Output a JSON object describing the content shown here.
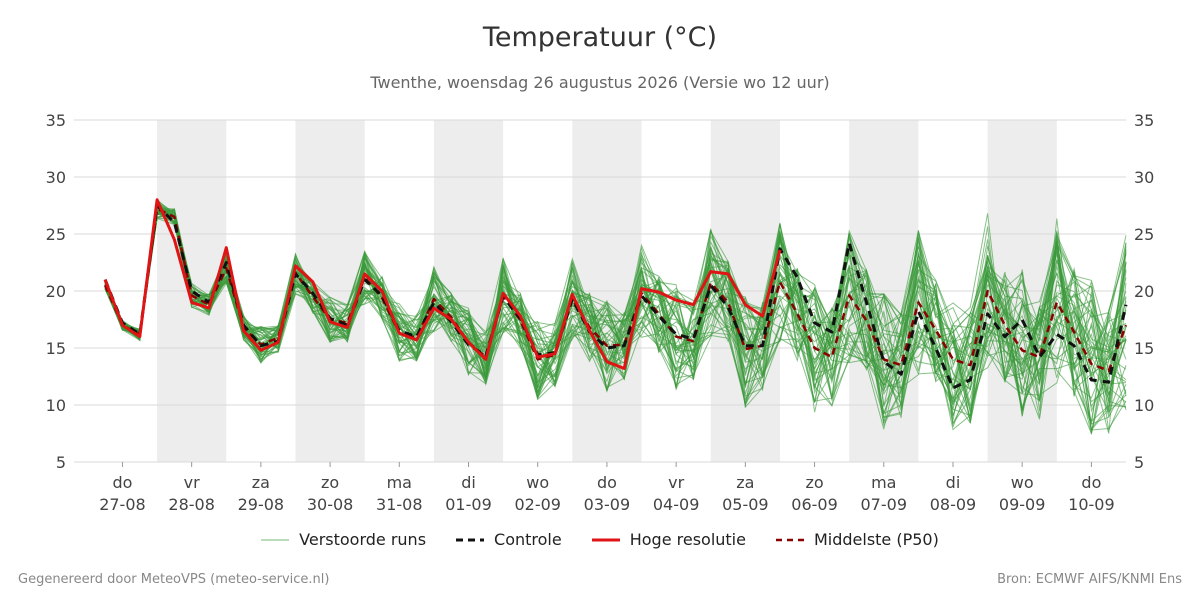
{
  "title": "Temperatuur (°C)",
  "subtitle": "Twenthe, woensdag 26 augustus 2026 (Versie wo 12 uur)",
  "footer_left": "Gegenereerd door MeteoVPS (meteo-service.nl)",
  "footer_right": "Bron: ECMWF AIFS/KNMI Ens",
  "legend": {
    "perturbed": "Verstoorde runs",
    "control": "Controle",
    "hires": "Hoge resolutie",
    "median": "Middelste (P50)"
  },
  "colors": {
    "perturbed": "#3a9a3a",
    "control": "#111111",
    "hires": "#e01414",
    "median": "#8b0000",
    "band": "#ededed",
    "grid": "#d9d9d9"
  },
  "chart_data": {
    "type": "line",
    "title": "Temperatuur (°C)",
    "ylim": [
      5,
      35
    ],
    "yticks": [
      5,
      10,
      15,
      20,
      25,
      30,
      35
    ],
    "grid": true,
    "legend_position": "bottom",
    "day_labels": [
      {
        "dow": "do",
        "date": "27-08"
      },
      {
        "dow": "vr",
        "date": "28-08"
      },
      {
        "dow": "za",
        "date": "29-08"
      },
      {
        "dow": "zo",
        "date": "30-08"
      },
      {
        "dow": "ma",
        "date": "31-08"
      },
      {
        "dow": "di",
        "date": "01-09"
      },
      {
        "dow": "wo",
        "date": "02-09"
      },
      {
        "dow": "do",
        "date": "03-09"
      },
      {
        "dow": "vr",
        "date": "04-09"
      },
      {
        "dow": "za",
        "date": "05-09"
      },
      {
        "dow": "zo",
        "date": "06-09"
      },
      {
        "dow": "ma",
        "date": "07-09"
      },
      {
        "dow": "di",
        "date": "08-09"
      },
      {
        "dow": "wo",
        "date": "09-09"
      },
      {
        "dow": "do",
        "date": "10-09"
      }
    ],
    "x_start_day": -0.7,
    "x_end_day": 14.5,
    "series": [
      {
        "name": "Hoge resolutie",
        "x": [
          -0.25,
          0,
          0.25,
          0.5,
          0.75,
          1,
          1.25,
          1.5,
          1.75,
          2,
          2.25,
          2.5,
          2.75,
          3,
          3.25,
          3.5,
          3.75,
          4,
          4.25,
          4.5,
          4.75,
          5,
          5.25,
          5.5,
          5.75,
          6,
          6.25,
          6.5,
          6.75,
          7,
          7.25,
          7.5,
          7.75,
          8,
          8.25,
          8.5,
          8.75,
          9,
          9.25,
          9.5
        ],
        "y": [
          21,
          17,
          16,
          28,
          24.5,
          19,
          18.5,
          23.8,
          16.5,
          14.8,
          15.5,
          22.2,
          20.8,
          17.3,
          16.8,
          21.5,
          20,
          16.3,
          15.7,
          18.5,
          17.5,
          15.5,
          14,
          19.8,
          17.8,
          14.2,
          14.5,
          19.7,
          16.5,
          13.8,
          13.2,
          20.2,
          19.9,
          19.2,
          18.8,
          21.7,
          21.5,
          18.8,
          17.8,
          23.6
        ]
      },
      {
        "name": "Controle",
        "x": [
          -0.25,
          0,
          0.25,
          0.5,
          0.75,
          1,
          1.25,
          1.5,
          1.75,
          2,
          2.25,
          2.5,
          2.75,
          3,
          3.25,
          3.5,
          3.75,
          4,
          4.25,
          4.5,
          4.75,
          5,
          5.25,
          5.5,
          5.75,
          6,
          6.25,
          6.5,
          6.75,
          7,
          7.25,
          7.5,
          7.75,
          8,
          8.25,
          8.5,
          8.75,
          9,
          9.25,
          9.5,
          9.75,
          10,
          10.25,
          10.5,
          10.75,
          11,
          11.25,
          11.5,
          11.75,
          12,
          12.25,
          12.5,
          12.75,
          13,
          13.25,
          13.5,
          13.75,
          14,
          14.25,
          14.5
        ],
        "y": [
          21,
          17.2,
          16.2,
          27.5,
          26,
          20,
          19,
          22.5,
          17,
          15.2,
          15.6,
          21.5,
          19.8,
          17.6,
          17,
          21,
          19.6,
          16.5,
          16,
          19,
          17.3,
          15.3,
          14.3,
          19.5,
          17.6,
          14.4,
          14.6,
          19.3,
          16.4,
          15,
          15.2,
          19.6,
          17.8,
          16.2,
          15.8,
          20.5,
          18.6,
          15.2,
          15.2,
          23.7,
          21.2,
          17.2,
          16.4,
          24.2,
          19,
          13.8,
          12.7,
          18.2,
          15,
          11.5,
          12.2,
          18,
          16,
          17.5,
          14.2,
          16.2,
          15.2,
          12.2,
          12,
          18.8
        ]
      },
      {
        "name": "Middelste (P50)",
        "x": [
          -0.25,
          0,
          0.25,
          0.5,
          0.75,
          1,
          1.25,
          1.5,
          1.75,
          2,
          2.25,
          2.5,
          2.75,
          3,
          3.25,
          3.5,
          3.75,
          4,
          4.25,
          4.5,
          4.75,
          5,
          5.25,
          5.5,
          5.75,
          6,
          6.25,
          6.5,
          6.75,
          7,
          7.25,
          7.5,
          7.75,
          8,
          8.25,
          8.5,
          8.75,
          9,
          9.25,
          9.5,
          9.75,
          10,
          10.25,
          10.5,
          10.75,
          11,
          11.25,
          11.5,
          11.75,
          12,
          12.25,
          12.5,
          12.75,
          13,
          13.25,
          13.5,
          13.75,
          14,
          14.25,
          14.5
        ],
        "y": [
          20.5,
          17,
          16.2,
          27.2,
          26.5,
          19.6,
          18.8,
          22,
          16.8,
          15.3,
          15.9,
          21.6,
          19.5,
          17.5,
          17.2,
          21.2,
          19.4,
          16.3,
          15.9,
          19.3,
          17.7,
          15.5,
          14.2,
          19.6,
          17.4,
          14,
          14.4,
          19.3,
          16.8,
          15.2,
          15.3,
          19.8,
          18,
          16,
          15.6,
          20.7,
          19,
          14.9,
          15.2,
          20.8,
          18,
          15,
          14.2,
          19.6,
          17.4,
          14,
          13.5,
          19,
          16.6,
          14,
          13.5,
          20,
          17,
          14.8,
          14.2,
          19,
          16.4,
          13.6,
          13,
          17
        ]
      }
    ]
  }
}
